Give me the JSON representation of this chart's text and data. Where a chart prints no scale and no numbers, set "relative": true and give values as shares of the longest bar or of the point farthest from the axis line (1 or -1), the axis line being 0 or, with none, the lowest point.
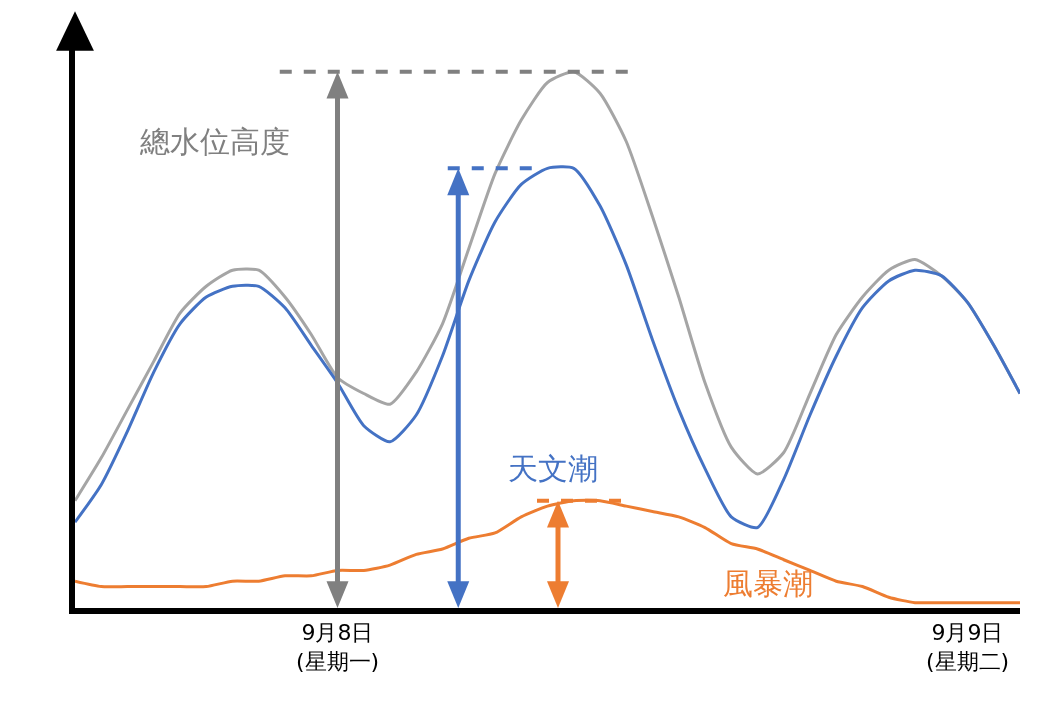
{
  "chart_data": {
    "type": "line",
    "relative": true,
    "legend": false,
    "marker": "none",
    "line_style": "solid",
    "categories": [
      null,
      null,
      null,
      null,
      null,
      null,
      null,
      null,
      null,
      null,
      "9月8日\n(星期一)",
      null,
      null,
      null,
      null,
      null,
      null,
      null,
      null,
      null,
      null,
      null,
      null,
      null,
      null,
      null,
      null,
      null,
      null,
      null,
      null,
      null,
      null,
      null,
      "9月9日\n(星期二)",
      null,
      null
    ],
    "tick_labels": "x",
    "series": [
      {
        "name": "總水位高度",
        "color": "#a5a5a5",
        "values": [
          0.2,
          0.28,
          0.37,
          0.46,
          0.55,
          0.6,
          0.63,
          0.63,
          0.58,
          0.51,
          0.43,
          0.4,
          0.38,
          0.44,
          0.53,
          0.67,
          0.81,
          0.91,
          0.98,
          1.0,
          0.96,
          0.87,
          0.73,
          0.58,
          0.42,
          0.3,
          0.25,
          0.29,
          0.4,
          0.51,
          0.58,
          0.63,
          0.65,
          0.62,
          0.57,
          0.49,
          0.4
        ]
      },
      {
        "name": "天文潮",
        "color": "#4472c4",
        "values": [
          0.16,
          0.23,
          0.33,
          0.44,
          0.53,
          0.58,
          0.6,
          0.6,
          0.56,
          0.49,
          0.42,
          0.34,
          0.31,
          0.36,
          0.47,
          0.61,
          0.72,
          0.79,
          0.82,
          0.82,
          0.75,
          0.64,
          0.5,
          0.37,
          0.26,
          0.17,
          0.15,
          0.24,
          0.36,
          0.47,
          0.56,
          0.61,
          0.63,
          0.62,
          0.57,
          0.49,
          0.4
        ]
      },
      {
        "name": "風暴潮",
        "color": "#ed7d31",
        "values": [
          0.05,
          0.04,
          0.04,
          0.04,
          0.04,
          0.04,
          0.05,
          0.05,
          0.06,
          0.06,
          0.07,
          0.07,
          0.08,
          0.1,
          0.11,
          0.13,
          0.14,
          0.17,
          0.19,
          0.2,
          0.2,
          0.19,
          0.18,
          0.17,
          0.15,
          0.12,
          0.11,
          0.09,
          0.07,
          0.05,
          0.04,
          0.02,
          0.01,
          0.01,
          0.01,
          0.01,
          0.01
        ]
      }
    ]
  }
}
